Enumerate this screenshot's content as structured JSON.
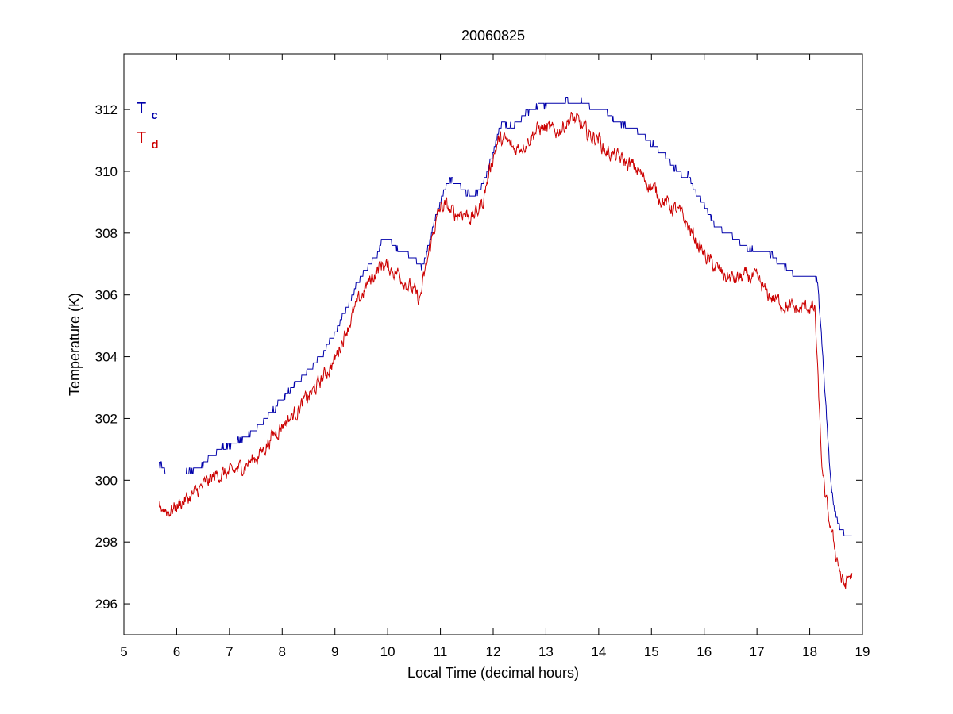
{
  "chart_data": {
    "type": "line",
    "title": "20060825",
    "xlabel": "Local Time (decimal hours)",
    "ylabel": "Temperature (K)",
    "xlim": [
      5,
      19
    ],
    "ylim": [
      295,
      313.8
    ],
    "xticks": [
      5,
      6,
      7,
      8,
      9,
      10,
      11,
      12,
      13,
      14,
      15,
      16,
      17,
      18,
      19
    ],
    "yticks": [
      296,
      298,
      300,
      302,
      304,
      306,
      308,
      310,
      312
    ],
    "grid": false,
    "legend": {
      "placement": "top-left",
      "entries": [
        {
          "main": "T",
          "sub": "c",
          "color": "#0000aa"
        },
        {
          "main": "T",
          "sub": "d",
          "color": "#cc0000"
        }
      ]
    },
    "series": [
      {
        "color": "#0000aa",
        "noise": 0.05,
        "x": [
          5.67,
          5.75,
          5.8,
          5.9,
          6.0,
          6.1,
          6.2,
          6.4,
          6.5,
          6.6,
          6.7,
          6.8,
          7.0,
          7.2,
          7.4,
          7.6,
          7.8,
          8.0,
          8.2,
          8.4,
          8.6,
          8.8,
          9.0,
          9.2,
          9.4,
          9.6,
          9.8,
          9.9,
          10.0,
          10.2,
          10.4,
          10.5,
          10.65,
          10.8,
          10.9,
          11.0,
          11.1,
          11.2,
          11.3,
          11.4,
          11.5,
          11.6,
          11.7,
          11.8,
          11.9,
          12.0,
          12.1,
          12.2,
          12.3,
          12.4,
          12.5,
          12.6,
          12.7,
          12.8,
          12.9,
          13.0,
          13.1,
          13.2,
          13.3,
          13.4,
          13.5,
          13.6,
          13.7,
          13.8,
          13.9,
          14.0,
          14.1,
          14.2,
          14.3,
          14.4,
          14.5,
          14.6,
          14.7,
          14.8,
          15.0,
          15.2,
          15.4,
          15.5,
          15.6,
          15.7,
          15.8,
          16.0,
          16.2,
          16.4,
          16.6,
          16.8,
          17.0,
          17.2,
          17.4,
          17.6,
          17.8,
          17.9,
          18.0,
          18.1,
          18.15,
          18.2,
          18.25,
          18.3,
          18.35,
          18.4,
          18.45,
          18.5,
          18.55,
          18.6,
          18.65,
          18.7,
          18.75,
          18.8
        ],
        "y": [
          300.5,
          300.4,
          300.2,
          300.2,
          300.2,
          300.2,
          300.3,
          300.4,
          300.5,
          300.7,
          300.8,
          301.0,
          301.1,
          301.3,
          301.5,
          301.8,
          302.2,
          302.6,
          303.0,
          303.4,
          303.7,
          304.2,
          304.7,
          305.5,
          306.3,
          306.9,
          307.3,
          307.8,
          307.8,
          307.5,
          307.3,
          307.2,
          306.9,
          307.7,
          308.5,
          309.0,
          309.5,
          309.7,
          309.6,
          309.5,
          309.3,
          309.2,
          309.3,
          309.5,
          310.0,
          310.6,
          311.3,
          311.6,
          311.4,
          311.5,
          311.6,
          311.8,
          312.0,
          312.1,
          312.2,
          312.1,
          312.2,
          312.2,
          312.2,
          312.3,
          312.3,
          312.2,
          312.3,
          312.2,
          312.0,
          312.0,
          312.0,
          311.8,
          311.6,
          311.6,
          311.5,
          311.4,
          311.3,
          311.2,
          310.9,
          310.6,
          310.2,
          310.0,
          309.8,
          309.9,
          309.4,
          308.9,
          308.3,
          308.0,
          307.8,
          307.5,
          307.4,
          307.4,
          307.1,
          306.8,
          306.5,
          306.6,
          306.6,
          306.6,
          306.4,
          305.3,
          304.0,
          302.6,
          301.2,
          300.0,
          299.3,
          298.8,
          298.5,
          298.4,
          298.3,
          298.2,
          298.2,
          298.2
        ]
      },
      {
        "color": "#cc0000",
        "noise": 0.2,
        "x": [
          5.67,
          5.75,
          5.85,
          5.95,
          6.1,
          6.3,
          6.5,
          6.7,
          6.8,
          7.0,
          7.2,
          7.4,
          7.6,
          7.8,
          8.0,
          8.2,
          8.4,
          8.6,
          8.8,
          9.0,
          9.2,
          9.4,
          9.6,
          9.8,
          9.9,
          10.0,
          10.2,
          10.4,
          10.5,
          10.6,
          10.65,
          10.8,
          10.9,
          11.0,
          11.1,
          11.2,
          11.3,
          11.4,
          11.5,
          11.6,
          11.7,
          11.8,
          11.9,
          12.0,
          12.1,
          12.2,
          12.3,
          12.4,
          12.5,
          12.6,
          12.7,
          12.8,
          12.9,
          13.0,
          13.1,
          13.2,
          13.3,
          13.4,
          13.5,
          13.6,
          13.7,
          13.8,
          13.9,
          14.0,
          14.1,
          14.2,
          14.3,
          14.4,
          14.5,
          14.6,
          14.7,
          14.8,
          15.0,
          15.2,
          15.4,
          15.5,
          15.6,
          15.7,
          15.8,
          16.0,
          16.2,
          16.4,
          16.6,
          16.8,
          17.0,
          17.2,
          17.4,
          17.6,
          17.8,
          17.9,
          18.0,
          18.1,
          18.15,
          18.2,
          18.25,
          18.3,
          18.35,
          18.4,
          18.45,
          18.5,
          18.55,
          18.6,
          18.65,
          18.7,
          18.75,
          18.8
        ],
        "y": [
          299.2,
          299.1,
          299.0,
          299.1,
          299.3,
          299.5,
          299.8,
          300.1,
          300.2,
          300.2,
          300.4,
          300.6,
          300.9,
          301.4,
          301.8,
          302.1,
          302.5,
          302.9,
          303.4,
          303.9,
          304.8,
          305.6,
          306.3,
          306.8,
          307.0,
          306.9,
          306.7,
          306.3,
          306.1,
          305.8,
          306.2,
          307.5,
          308.3,
          308.8,
          308.9,
          308.7,
          308.6,
          308.7,
          308.6,
          308.5,
          308.7,
          309.0,
          309.8,
          310.5,
          311.0,
          311.0,
          310.9,
          310.7,
          310.8,
          310.9,
          311.1,
          311.3,
          311.4,
          311.4,
          311.3,
          311.3,
          311.4,
          311.6,
          311.7,
          311.6,
          311.4,
          311.2,
          311.1,
          311.1,
          310.7,
          310.6,
          310.5,
          310.4,
          310.3,
          310.2,
          310.1,
          309.9,
          309.5,
          309.1,
          308.8,
          308.7,
          308.5,
          308.2,
          307.9,
          307.3,
          306.9,
          306.6,
          306.5,
          306.6,
          306.5,
          306.0,
          305.8,
          305.6,
          305.5,
          305.6,
          305.6,
          305.5,
          303.5,
          301.5,
          300.0,
          299.4,
          298.9,
          298.4,
          298.0,
          297.6,
          297.3,
          296.8,
          296.6,
          296.7,
          296.9,
          296.9
        ]
      }
    ]
  }
}
